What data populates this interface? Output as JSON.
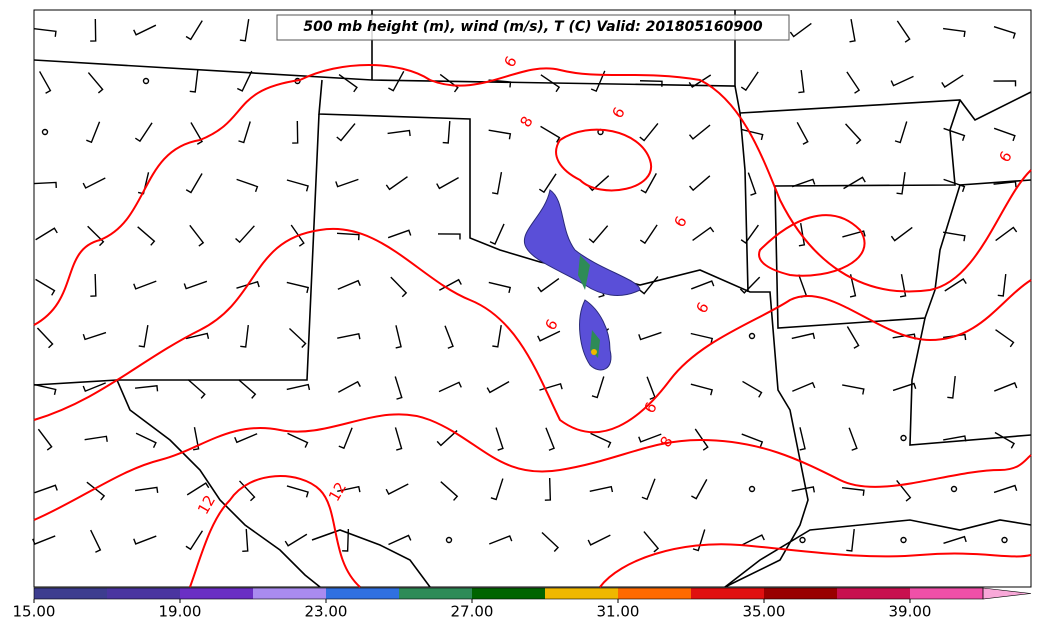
{
  "title": "500 mb height (m), wind (m/s), T (C) Valid: 201805160900",
  "contour_labels": [
    "6",
    "8",
    "6",
    "6",
    "6",
    "6",
    "6",
    "6",
    "8",
    "12",
    "12"
  ],
  "colorbar": {
    "levels": [
      15,
      17,
      19,
      21,
      23,
      25,
      27,
      29,
      31,
      33,
      35,
      37,
      39,
      41
    ],
    "colors": [
      "#3d3d8f",
      "#4a35a0",
      "#6a2fc4",
      "#a98bf0",
      "#3070e0",
      "#2e8b57",
      "#006400",
      "#f0b800",
      "#ff6a00",
      "#e01010",
      "#990000",
      "#c8104f",
      "#f050a8"
    ],
    "extend_color": "#f8a8d8",
    "ticks": [
      {
        "value": 15,
        "label": "15.00"
      },
      {
        "value": 19,
        "label": "19.00"
      },
      {
        "value": 23,
        "label": "23.00"
      },
      {
        "value": 27,
        "label": "27.00"
      },
      {
        "value": 31,
        "label": "31.00"
      },
      {
        "value": 35,
        "label": "35.00"
      },
      {
        "value": 39,
        "label": "39.00"
      }
    ]
  }
}
